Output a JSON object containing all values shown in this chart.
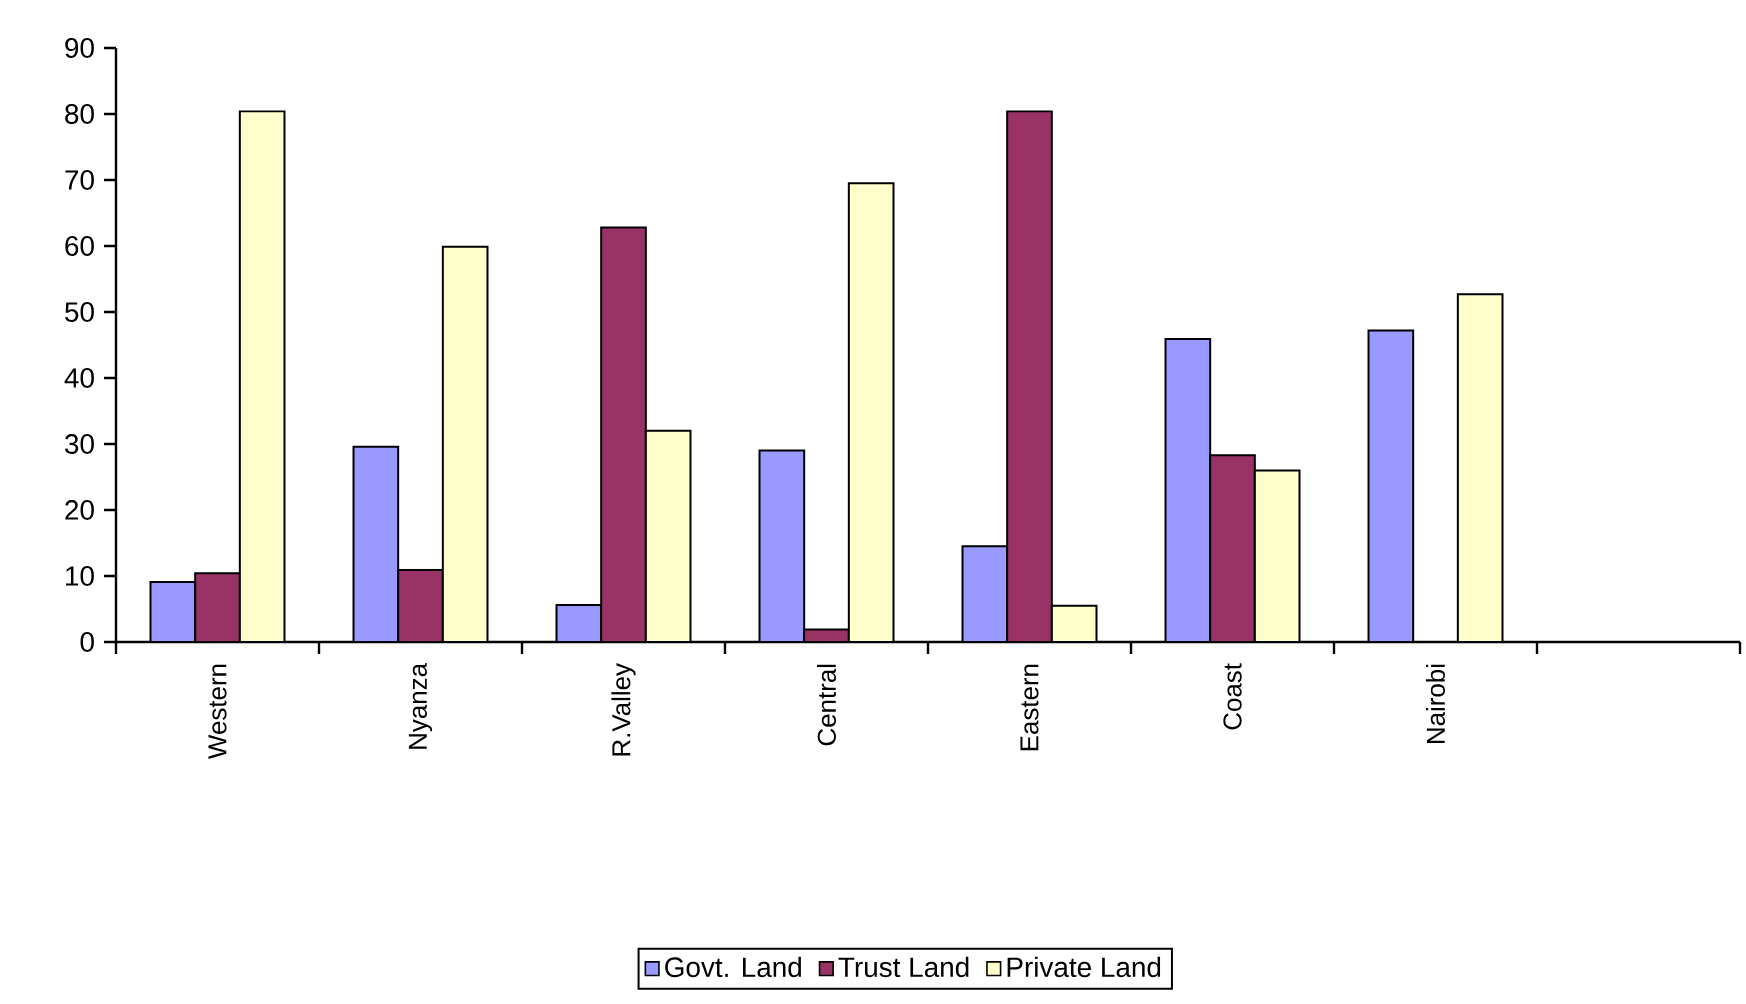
{
  "chart_data": {
    "type": "bar",
    "categories": [
      "Western",
      "Nyanza",
      "R.Valley",
      "Central",
      "Eastern",
      "Coast",
      "Nairobi",
      null
    ],
    "series": [
      {
        "name": "Govt. Land",
        "color": "#9999ff",
        "values": [
          9.1,
          29.6,
          5.6,
          29.0,
          14.5,
          45.9,
          47.2,
          null
        ]
      },
      {
        "name": "Trust Land",
        "color": "#993366",
        "values": [
          10.4,
          10.9,
          62.8,
          1.9,
          80.4,
          28.3,
          null,
          null
        ]
      },
      {
        "name": "Private Land",
        "color": "#ffffcc",
        "values": [
          80.4,
          59.9,
          32.0,
          69.5,
          5.5,
          26.0,
          52.7,
          null
        ]
      }
    ],
    "ylim": [
      0,
      90
    ],
    "yticks": [
      0,
      10,
      20,
      30,
      40,
      50,
      60,
      70,
      80,
      90
    ],
    "legend": "bottom"
  }
}
